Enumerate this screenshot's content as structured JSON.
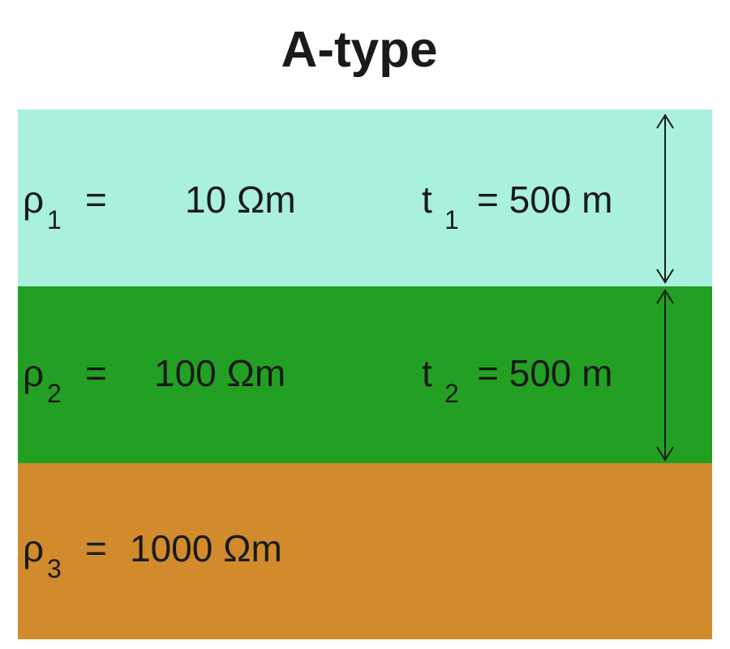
{
  "title": "A-type",
  "layers": [
    {
      "rho": {
        "symbol": "ρ",
        "subscript": "1",
        "equals": "=",
        "value": "10 Ωm"
      },
      "thickness": {
        "symbol": "t",
        "subscript": "1",
        "value": "= 500 m"
      }
    },
    {
      "rho": {
        "symbol": "ρ",
        "subscript": "2",
        "equals": "=",
        "value": "100 Ωm"
      },
      "thickness": {
        "symbol": "t",
        "subscript": "2",
        "value": "= 500 m"
      }
    },
    {
      "rho": {
        "symbol": "ρ",
        "subscript": "3",
        "equals": "=",
        "value": "1000 Ωm"
      }
    }
  ]
}
